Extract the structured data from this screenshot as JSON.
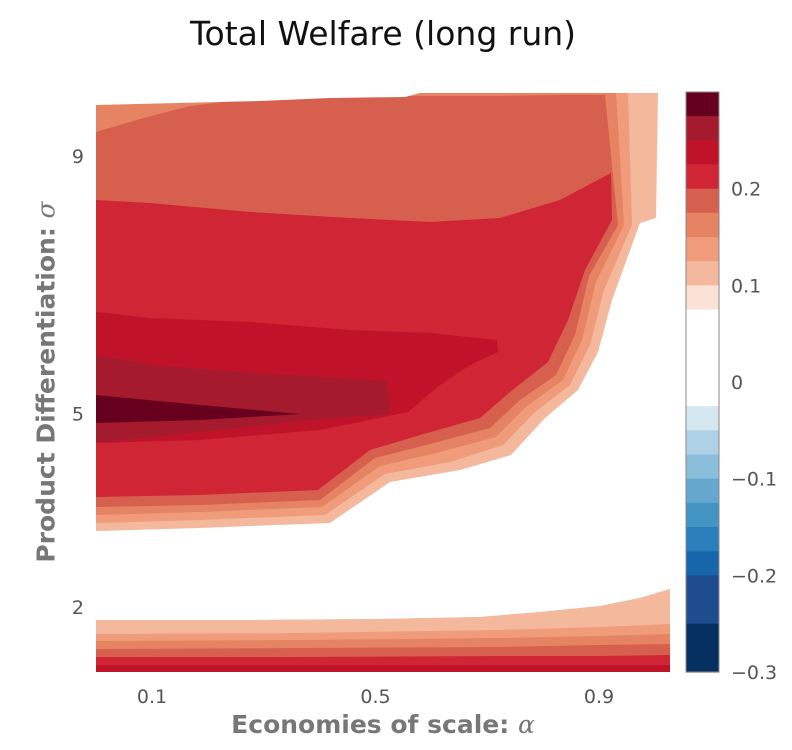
{
  "chart_data": {
    "type": "contour",
    "title": "Total Welfare (long run)",
    "xlabel": "Economies of scale: ",
    "xlabel_symbol": "α",
    "ylabel": "Product Differentiation: ",
    "ylabel_symbol": "σ",
    "x_ticks": [
      {
        "value": 0.1,
        "label": "0.1"
      },
      {
        "value": 0.5,
        "label": "0.5"
      },
      {
        "value": 0.9,
        "label": "0.9"
      }
    ],
    "y_ticks": [
      {
        "value": 2,
        "label": "2"
      },
      {
        "value": 5,
        "label": "5"
      },
      {
        "value": 9,
        "label": "9"
      }
    ],
    "colorbar": {
      "range": [
        -0.3,
        0.3
      ],
      "ticks": [
        {
          "value": 0.2,
          "label": "0.2"
        },
        {
          "value": 0.1,
          "label": "0.1"
        },
        {
          "value": 0,
          "label": "0"
        },
        {
          "value": -0.1,
          "label": "−0.1"
        },
        {
          "value": -0.2,
          "label": "−0.2"
        },
        {
          "value": -0.3,
          "label": "−0.3"
        }
      ],
      "levels": [
        {
          "min": 0.275,
          "max": 0.3,
          "color": "#67001f"
        },
        {
          "min": 0.25,
          "max": 0.275,
          "color": "#a51a2c"
        },
        {
          "min": 0.225,
          "max": 0.25,
          "color": "#c0132a"
        },
        {
          "min": 0.2,
          "max": 0.225,
          "color": "#d02534"
        },
        {
          "min": 0.175,
          "max": 0.2,
          "color": "#d6604d"
        },
        {
          "min": 0.15,
          "max": 0.175,
          "color": "#e58362"
        },
        {
          "min": 0.125,
          "max": 0.15,
          "color": "#f09c7b"
        },
        {
          "min": 0.1,
          "max": 0.125,
          "color": "#f4b89c"
        },
        {
          "min": 0.075,
          "max": 0.1,
          "color": "#fae2d6"
        },
        {
          "min": -0.025,
          "max": 0.075,
          "color": "#ffffff"
        },
        {
          "min": -0.05,
          "max": -0.025,
          "color": "#d5e7f1"
        },
        {
          "min": -0.075,
          "max": -0.05,
          "color": "#aed1e6"
        },
        {
          "min": -0.1,
          "max": -0.075,
          "color": "#8bbeda"
        },
        {
          "min": -0.125,
          "max": -0.1,
          "color": "#66a7cf"
        },
        {
          "min": -0.15,
          "max": -0.125,
          "color": "#4393c3"
        },
        {
          "min": -0.175,
          "max": -0.15,
          "color": "#2a7fbb"
        },
        {
          "min": -0.2,
          "max": -0.175,
          "color": "#1766ab"
        },
        {
          "min": -0.25,
          "max": -0.2,
          "color": "#1d4d8f"
        },
        {
          "min": -0.3,
          "max": -0.25,
          "color": "#053061"
        }
      ]
    }
  }
}
